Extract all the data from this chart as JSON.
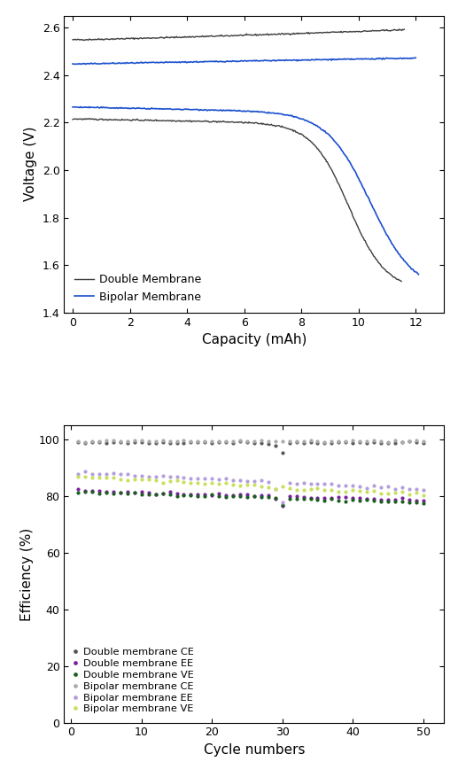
{
  "top_chart": {
    "xlabel": "Capacity (mAh)",
    "ylabel": "Voltage (V)",
    "xlim": [
      -0.3,
      13
    ],
    "ylim": [
      1.4,
      2.65
    ],
    "yticks": [
      1.4,
      1.6,
      1.8,
      2.0,
      2.2,
      2.4,
      2.6
    ],
    "xticks": [
      0,
      2,
      4,
      6,
      8,
      10,
      12
    ],
    "double_color": "#3d3d3d",
    "bipolar_color": "#1a4fcc",
    "legend_loc": "lower left"
  },
  "bottom_chart": {
    "xlabel": "Cycle numbers",
    "ylabel": "Efficiency (%)",
    "xlim": [
      -1,
      53
    ],
    "ylim": [
      0,
      105
    ],
    "yticks": [
      0,
      20,
      40,
      60,
      80,
      100
    ],
    "xticks": [
      0,
      10,
      20,
      30,
      40,
      50
    ],
    "dm_CE_color": "#555555",
    "dm_EE_color": "#7b1fa2",
    "dm_VE_color": "#1b5e20",
    "bm_CE_color": "#aaaaaa",
    "bm_EE_color": "#b39ddb",
    "bm_VE_color": "#c8e05a",
    "legend_loc": "lower left"
  }
}
